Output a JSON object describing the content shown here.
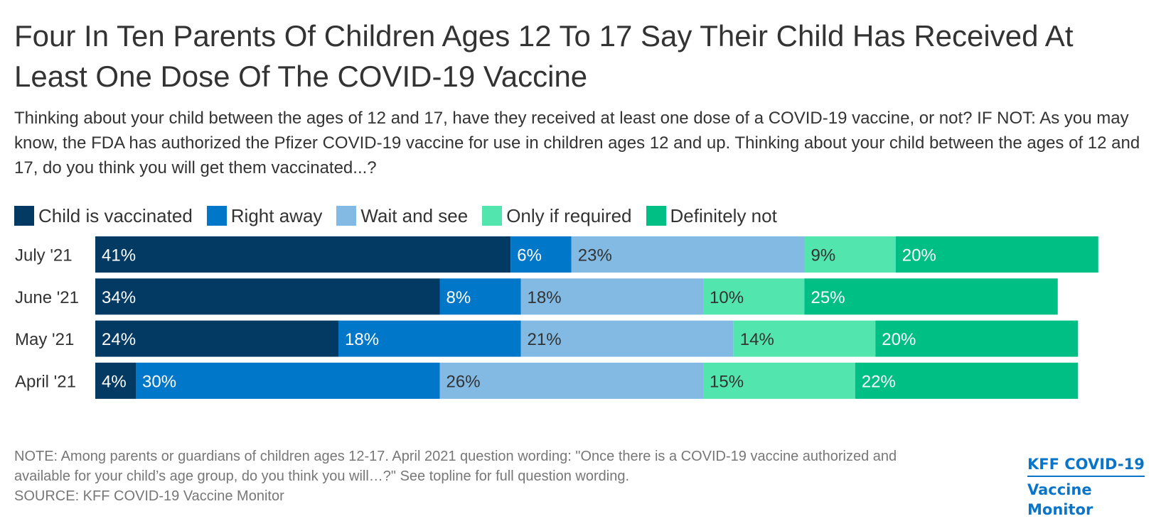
{
  "chart_data": {
    "type": "bar",
    "orientation": "horizontal",
    "stacked": true,
    "title": "Four In Ten Parents Of Children Ages 12 To 17 Say Their Child Has Received At Least One Dose Of The COVID-19 Vaccine",
    "subtitle": "Thinking about your child between the ages of 12 and 17, have they received at least one dose of a COVID-19 vaccine, or not? IF NOT: As you may know, the FDA has authorized the Pfizer COVID-19 vaccine for use in children ages 12 and up. Thinking about your child between the ages of 12 and 17, do you think you will get them vaccinated...?",
    "categories": [
      "July '21",
      "June '21",
      "May '21",
      "April '21"
    ],
    "series": [
      {
        "name": "Child is vaccinated",
        "color": "#033a63",
        "label_color": "#ffffff",
        "values": [
          41,
          34,
          24,
          4
        ]
      },
      {
        "name": "Right away",
        "color": "#0077c8",
        "label_color": "#ffffff",
        "values": [
          6,
          8,
          18,
          30
        ]
      },
      {
        "name": "Wait and see",
        "color": "#82bae4",
        "label_color": "#333333",
        "values": [
          23,
          18,
          21,
          26
        ]
      },
      {
        "name": "Only if required",
        "color": "#52e6ae",
        "label_color": "#333333",
        "values": [
          9,
          10,
          14,
          15
        ]
      },
      {
        "name": "Definitely not",
        "color": "#00bf84",
        "label_color": "#ffffff",
        "values": [
          20,
          25,
          20,
          22
        ]
      }
    ],
    "value_suffix": "%",
    "legend_position": "top-left",
    "grid": false
  },
  "notes": {
    "note_line1": "NOTE: Among parents or guardians of children ages 12-17. April 2021 question wording: \"Once there is a COVID-19 vaccine authorized and",
    "note_line2": "available for your child’s age group, do you think you will…?\" See topline for full question wording.",
    "source": "SOURCE: KFF COVID-19 Vaccine Monitor"
  },
  "brand": {
    "line1": "KFF COVID-19",
    "line2": "Vaccine Monitor",
    "color": "#0a75c8"
  }
}
